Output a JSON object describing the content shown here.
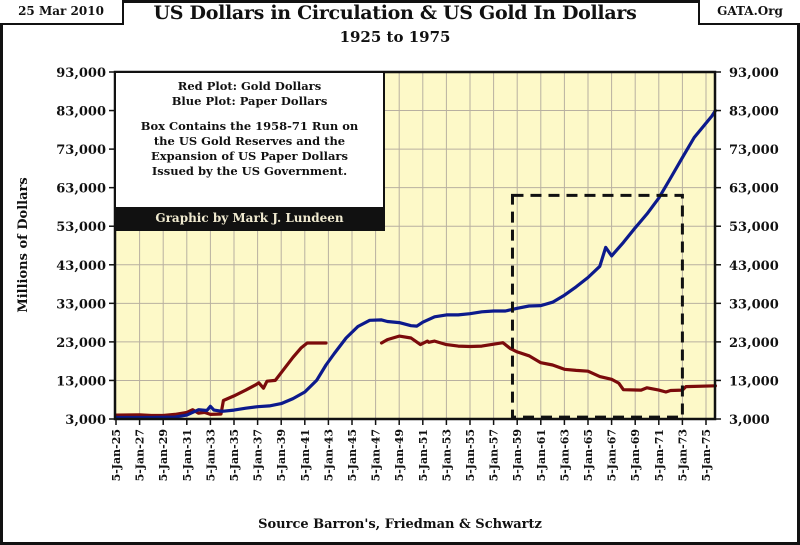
{
  "header": {
    "date": "25 Mar 2010",
    "site": "GATA.Org",
    "title": "US Dollars in Circulation & US Gold In Dollars",
    "subtitle": "1925 to 1975"
  },
  "legend": {
    "lines": [
      "Red Plot: Gold Dollars",
      "Blue Plot: Paper Dollars",
      "",
      "Box Contains the 1958-71 Run on",
      "the US Gold Reserves and the",
      "Expansion of US Paper Dollars",
      "Issued by the US Government."
    ],
    "credit": "Graphic by Mark J. Lundeen"
  },
  "colors": {
    "plot_background": "#fdf9c8",
    "gold_series": "#7b0b0b",
    "paper_series": "#0c1a8c",
    "grid": "#b8b0a0",
    "box": "#111111"
  },
  "chart_data": {
    "type": "line",
    "title": "US Dollars in Circulation & US Gold In Dollars",
    "subtitle": "1925 to 1975",
    "xlabel": "Source Barron's, Friedman & Schwartz",
    "ylabel": "Millions of Dollars",
    "xlim": [
      1925,
      1975.8
    ],
    "ylim": [
      3000,
      93000
    ],
    "grid": true,
    "y_ticks": [
      3000,
      13000,
      23000,
      33000,
      43000,
      53000,
      63000,
      73000,
      83000,
      93000
    ],
    "y_tick_labels": [
      "3,000",
      "13,000",
      "23,000",
      "33,000",
      "43,000",
      "53,000",
      "63,000",
      "73,000",
      "83,000",
      "93,000"
    ],
    "right_axis_mirrors_left": true,
    "x_ticks": [
      1925,
      1927,
      1929,
      1931,
      1933,
      1935,
      1937,
      1939,
      1941,
      1943,
      1945,
      1947,
      1949,
      1951,
      1953,
      1955,
      1957,
      1959,
      1961,
      1963,
      1965,
      1967,
      1969,
      1971,
      1973,
      1975
    ],
    "x_tick_labels": [
      "5-Jan-25",
      "5-Jan-27",
      "5-Jan-29",
      "5-Jan-31",
      "5-Jan-33",
      "5-Jan-35",
      "5-Jan-37",
      "5-Jan-39",
      "5-Jan-41",
      "5-Jan-43",
      "5-Jan-45",
      "5-Jan-47",
      "5-Jan-49",
      "5-Jan-51",
      "5-Jan-53",
      "5-Jan-55",
      "5-Jan-57",
      "5-Jan-59",
      "5-Jan-61",
      "5-Jan-63",
      "5-Jan-65",
      "5-Jan-67",
      "5-Jan-69",
      "5-Jan-71",
      "5-Jan-73",
      "5-Jan-75"
    ],
    "series": [
      {
        "name": "Gold Dollars",
        "color": "red",
        "segments": [
          [
            [
              1925,
              4000
            ],
            [
              1927,
              4100
            ],
            [
              1928,
              3900
            ],
            [
              1929,
              3900
            ],
            [
              1930,
              4200
            ],
            [
              1931,
              4700
            ],
            [
              1931.5,
              5400
            ],
            [
              1932,
              4500
            ],
            [
              1932.5,
              4700
            ],
            [
              1933,
              4200
            ],
            [
              1933.9,
              4300
            ],
            [
              1934.1,
              7800
            ],
            [
              1935,
              9000
            ],
            [
              1936,
              10500
            ],
            [
              1936.8,
              11800
            ],
            [
              1937.1,
              12400
            ],
            [
              1937.5,
              11000
            ],
            [
              1937.8,
              12800
            ],
            [
              1938.5,
              13000
            ],
            [
              1939,
              15000
            ],
            [
              1940,
              19000
            ],
            [
              1940.7,
              21500
            ],
            [
              1941.2,
              22700
            ],
            [
              1942,
              22700
            ],
            [
              1942.8,
              22700
            ]
          ],
          [
            [
              1947.5,
              22700
            ],
            [
              1948,
              23600
            ],
            [
              1949,
              24500
            ],
            [
              1950,
              24000
            ],
            [
              1950.8,
              22300
            ],
            [
              1951.4,
              23200
            ],
            [
              1951.5,
              22900
            ],
            [
              1952,
              23200
            ],
            [
              1953,
              22300
            ],
            [
              1954,
              21900
            ],
            [
              1955,
              21800
            ],
            [
              1956,
              21900
            ],
            [
              1957,
              22400
            ],
            [
              1957.8,
              22800
            ],
            [
              1958.4,
              21300
            ],
            [
              1959,
              20400
            ],
            [
              1960,
              19400
            ],
            [
              1961,
              17600
            ],
            [
              1962,
              17000
            ],
            [
              1963,
              15900
            ],
            [
              1964,
              15600
            ],
            [
              1965,
              15400
            ],
            [
              1966,
              14000
            ],
            [
              1967,
              13300
            ],
            [
              1967.6,
              12300
            ],
            [
              1968,
              10600
            ],
            [
              1969.5,
              10500
            ],
            [
              1970,
              11100
            ],
            [
              1971,
              10500
            ],
            [
              1971.6,
              10000
            ],
            [
              1972,
              10400
            ],
            [
              1973,
              10500
            ],
            [
              1973.3,
              11400
            ],
            [
              1975.8,
              11600
            ]
          ]
        ]
      },
      {
        "name": "Paper Dollars",
        "color": "blue",
        "segments": [
          [
            [
              1925,
              3400
            ],
            [
              1928,
              3400
            ],
            [
              1930,
              3500
            ],
            [
              1931,
              4000
            ],
            [
              1932,
              5400
            ],
            [
              1932.7,
              5200
            ],
            [
              1933,
              6300
            ],
            [
              1933.3,
              5300
            ],
            [
              1934,
              5000
            ],
            [
              1935,
              5300
            ],
            [
              1936,
              5800
            ],
            [
              1937,
              6200
            ],
            [
              1938,
              6400
            ],
            [
              1939,
              7000
            ],
            [
              1940,
              8300
            ],
            [
              1941,
              10000
            ],
            [
              1942,
              13000
            ],
            [
              1942.8,
              17000
            ],
            [
              1943.5,
              20000
            ],
            [
              1944.5,
              24000
            ],
            [
              1945.5,
              27000
            ],
            [
              1946.5,
              28600
            ],
            [
              1947.5,
              28700
            ],
            [
              1948,
              28300
            ],
            [
              1949,
              28000
            ],
            [
              1950,
              27200
            ],
            [
              1950.5,
              27100
            ],
            [
              1951,
              28100
            ],
            [
              1952,
              29500
            ],
            [
              1953,
              30000
            ],
            [
              1954,
              30000
            ],
            [
              1955,
              30300
            ],
            [
              1956,
              30800
            ],
            [
              1957,
              31000
            ],
            [
              1958,
              31000
            ],
            [
              1959,
              31700
            ],
            [
              1960,
              32300
            ],
            [
              1961,
              32400
            ],
            [
              1962,
              33300
            ],
            [
              1963,
              35100
            ],
            [
              1964,
              37300
            ],
            [
              1965,
              39700
            ],
            [
              1966,
              42600
            ],
            [
              1966.5,
              47500
            ],
            [
              1967,
              45300
            ],
            [
              1968,
              48800
            ],
            [
              1969,
              52600
            ],
            [
              1970,
              56200
            ],
            [
              1971,
              60300
            ],
            [
              1972,
              65500
            ],
            [
              1973,
              70800
            ],
            [
              1974,
              76000
            ],
            [
              1975.5,
              81600
            ],
            [
              1975.8,
              83000
            ]
          ]
        ]
      }
    ],
    "annotations": [
      {
        "type": "dashed-box",
        "label": "1958-71 Run on US Gold Reserves",
        "x_range": [
          1958.6,
          1973.0
        ],
        "y_range": [
          3500,
          61000
        ]
      },
      {
        "type": "text-box",
        "position": "top-left",
        "text": "Red Plot: Gold Dollars / Blue Plot: Paper Dollars / Box Contains the 1958-71 Run on the US Gold Reserves and the Expansion of US Paper Dollars Issued by the US Government. / Graphic by Mark J. Lundeen"
      }
    ]
  }
}
